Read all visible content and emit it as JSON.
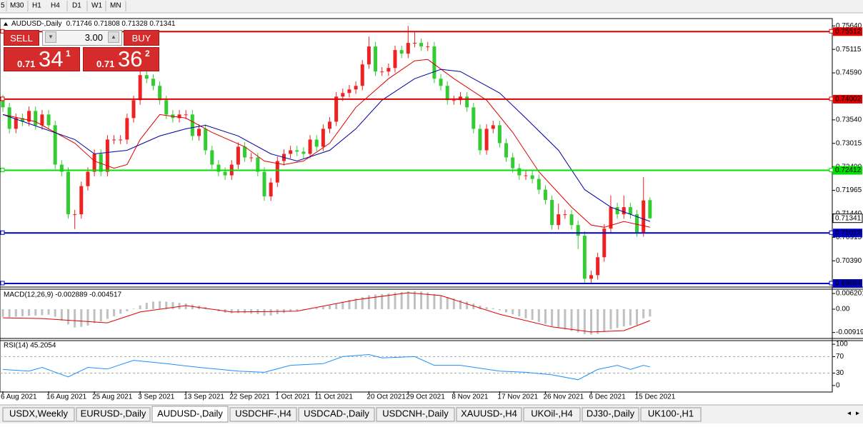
{
  "toolbar": [
    "5",
    "M30",
    "H1",
    "H4",
    "D1",
    "W1",
    "MN"
  ],
  "tabs": [
    "USDX,Weekly",
    "EURUSD-,Daily",
    "AUDUSD-,Daily",
    "USDCHF-,H4",
    "USDCAD-,Daily",
    "USDCNH-,Daily",
    "XAUUSD-,H4",
    "UKOil-,H4",
    "DJ30-,Daily",
    "UK100-,H1"
  ],
  "trade_panel": {
    "sell": "SELL",
    "buy": "BUY",
    "lots": "3.00",
    "sell_prefix": "0.71",
    "sell_big": "34",
    "sell_sup": "1",
    "buy_prefix": "0.71",
    "buy_big": "36",
    "buy_sup": "2"
  },
  "chart_data": [
    {
      "type": "candlestick",
      "title": "AUDUSD-,Daily",
      "subtitle": "0.71746 0.71808 0.71328 0.71341",
      "categories": [
        "6 Aug 2021",
        null,
        null,
        null,
        null,
        null,
        null,
        "16 Aug 2021",
        null,
        null,
        null,
        null,
        null,
        null,
        "25 Aug 2021",
        null,
        null,
        null,
        null,
        null,
        null,
        "3 Sep 2021",
        null,
        null,
        null,
        null,
        null,
        null,
        "13 Sep 2021",
        null,
        null,
        null,
        null,
        null,
        null,
        "22 Sep 2021",
        null,
        null,
        null,
        null,
        null,
        null,
        "1 Oct 2021",
        null,
        null,
        null,
        null,
        null,
        "11 Oct 2021",
        null,
        null,
        null,
        null,
        null,
        null,
        null,
        "20 Oct 2021",
        null,
        null,
        null,
        null,
        null,
        "29 Oct 2021",
        null,
        null,
        null,
        null,
        null,
        null,
        "8 Nov 2021",
        null,
        null,
        null,
        null,
        null,
        null,
        "17 Nov 2021",
        null,
        null,
        null,
        null,
        null,
        null,
        "26 Nov 2021",
        null,
        null,
        null,
        null,
        null,
        null,
        "6 Dec 2021",
        null,
        null,
        null,
        null,
        null,
        null,
        "15 Dec 2021",
        null,
        null
      ],
      "candles": [
        [
          0.74,
          0.741,
          0.7372,
          0.7382
        ],
        [
          0.7382,
          0.7392,
          0.7324,
          0.7334
        ],
        [
          0.7334,
          0.7368,
          0.7324,
          0.7358
        ],
        [
          0.7358,
          0.7368,
          0.734,
          0.735
        ],
        [
          0.735,
          0.7384,
          0.734,
          0.7374
        ],
        [
          0.7374,
          0.7384,
          0.7332,
          0.7342
        ],
        [
          0.7342,
          0.7376,
          0.7332,
          0.7366
        ],
        [
          0.7366,
          0.7376,
          0.7332,
          0.7342
        ],
        [
          0.7342,
          0.7352,
          0.7244,
          0.7254
        ],
        [
          0.7254,
          0.7264,
          0.7228,
          0.7238
        ],
        [
          0.7238,
          0.7248,
          0.7133,
          0.7143
        ],
        [
          0.7143,
          0.7153,
          0.711,
          0.7143
        ],
        [
          0.7143,
          0.7216,
          0.7133,
          0.7206
        ],
        [
          0.7206,
          0.7248,
          0.7196,
          0.7238
        ],
        [
          0.7238,
          0.7288,
          0.7228,
          0.7278
        ],
        [
          0.7278,
          0.7288,
          0.7228,
          0.7238
        ],
        [
          0.7238,
          0.732,
          0.7228,
          0.731
        ],
        [
          0.731,
          0.732,
          0.73,
          0.731
        ],
        [
          0.731,
          0.732,
          0.73,
          0.731
        ],
        [
          0.731,
          0.7368,
          0.73,
          0.7358
        ],
        [
          0.7358,
          0.7408,
          0.7348,
          0.7398
        ],
        [
          0.7398,
          0.7464,
          0.7388,
          0.7454
        ],
        [
          0.7454,
          0.7464,
          0.7436,
          0.7446
        ],
        [
          0.7446,
          0.7456,
          0.742,
          0.743
        ],
        [
          0.743,
          0.744,
          0.7388,
          0.7398
        ],
        [
          0.7398,
          0.7408,
          0.7356,
          0.7366
        ],
        [
          0.7366,
          0.7376,
          0.7348,
          0.7358
        ],
        [
          0.7358,
          0.7376,
          0.7348,
          0.7366
        ],
        [
          0.7366,
          0.7376,
          0.7356,
          0.7366
        ],
        [
          0.7366,
          0.7376,
          0.7308,
          0.7318
        ],
        [
          0.7318,
          0.7344,
          0.7308,
          0.7334
        ],
        [
          0.7334,
          0.7344,
          0.7276,
          0.7286
        ],
        [
          0.7286,
          0.7296,
          0.7244,
          0.7254
        ],
        [
          0.7254,
          0.7264,
          0.7228,
          0.7238
        ],
        [
          0.7238,
          0.7248,
          0.722,
          0.723
        ],
        [
          0.723,
          0.7264,
          0.722,
          0.7254
        ],
        [
          0.7254,
          0.7304,
          0.7244,
          0.7294
        ],
        [
          0.7294,
          0.7304,
          0.726,
          0.727
        ],
        [
          0.727,
          0.728,
          0.726,
          0.727
        ],
        [
          0.727,
          0.728,
          0.7228,
          0.7238
        ],
        [
          0.7238,
          0.7248,
          0.7173,
          0.7183
        ],
        [
          0.7183,
          0.7224,
          0.7173,
          0.7214
        ],
        [
          0.7214,
          0.7272,
          0.7204,
          0.7262
        ],
        [
          0.7262,
          0.7288,
          0.7252,
          0.7278
        ],
        [
          0.7278,
          0.7296,
          0.7268,
          0.7286
        ],
        [
          0.7286,
          0.7296,
          0.7273,
          0.7283
        ],
        [
          0.7283,
          0.7293,
          0.7268,
          0.7278
        ],
        [
          0.7278,
          0.732,
          0.7268,
          0.731
        ],
        [
          0.731,
          0.732,
          0.7284,
          0.7294
        ],
        [
          0.7294,
          0.7344,
          0.7284,
          0.7334
        ],
        [
          0.7334,
          0.736,
          0.7324,
          0.735
        ],
        [
          0.735,
          0.7416,
          0.734,
          0.7406
        ],
        [
          0.7406,
          0.7424,
          0.7396,
          0.7414
        ],
        [
          0.7414,
          0.7432,
          0.7404,
          0.7422
        ],
        [
          0.7422,
          0.744,
          0.7412,
          0.743
        ],
        [
          0.743,
          0.7488,
          0.742,
          0.7478
        ],
        [
          0.7478,
          0.754,
          0.7468,
          0.7518
        ],
        [
          0.7518,
          0.7528,
          0.7452,
          0.7462
        ],
        [
          0.7462,
          0.7472,
          0.7452,
          0.7462
        ],
        [
          0.7462,
          0.748,
          0.7452,
          0.747
        ],
        [
          0.747,
          0.752,
          0.746,
          0.751
        ],
        [
          0.751,
          0.752,
          0.7492,
          0.7502
        ],
        [
          0.7502,
          0.7564,
          0.7492,
          0.7526
        ],
        [
          0.7526,
          0.755,
          0.7516,
          0.7526
        ],
        [
          0.7526,
          0.7536,
          0.7508,
          0.7518
        ],
        [
          0.7518,
          0.7528,
          0.7508,
          0.7518
        ],
        [
          0.7518,
          0.7528,
          0.7436,
          0.7446
        ],
        [
          0.7446,
          0.7456,
          0.742,
          0.743
        ],
        [
          0.743,
          0.744,
          0.7388,
          0.7398
        ],
        [
          0.7398,
          0.7408,
          0.7388,
          0.7398
        ],
        [
          0.7398,
          0.7416,
          0.7388,
          0.7406
        ],
        [
          0.7406,
          0.7416,
          0.7372,
          0.7382
        ],
        [
          0.7382,
          0.7392,
          0.7324,
          0.7334
        ],
        [
          0.7334,
          0.7344,
          0.7276,
          0.7286
        ],
        [
          0.7286,
          0.7344,
          0.7276,
          0.7334
        ],
        [
          0.7334,
          0.7352,
          0.7324,
          0.7342
        ],
        [
          0.7342,
          0.7352,
          0.7292,
          0.7302
        ],
        [
          0.7302,
          0.7312,
          0.726,
          0.727
        ],
        [
          0.727,
          0.728,
          0.7236,
          0.7246
        ],
        [
          0.7246,
          0.7256,
          0.722,
          0.723
        ],
        [
          0.723,
          0.724,
          0.722,
          0.723
        ],
        [
          0.723,
          0.724,
          0.7212,
          0.7222
        ],
        [
          0.7222,
          0.7232,
          0.7188,
          0.7198
        ],
        [
          0.7198,
          0.7208,
          0.7165,
          0.7175
        ],
        [
          0.7175,
          0.7185,
          0.7109,
          0.7119
        ],
        [
          0.7119,
          0.7167,
          0.7109,
          0.7143
        ],
        [
          0.7143,
          0.7153,
          0.7133,
          0.7143
        ],
        [
          0.7143,
          0.7153,
          0.7109,
          0.7119
        ],
        [
          0.7119,
          0.7129,
          0.7065,
          0.7095
        ],
        [
          0.7095,
          0.7105,
          0.6988,
          0.6999
        ],
        [
          0.6999,
          0.7017,
          0.699,
          0.7007
        ],
        [
          0.7007,
          0.7057,
          0.6997,
          0.7047
        ],
        [
          0.7047,
          0.7121,
          0.7037,
          0.7111
        ],
        [
          0.7111,
          0.7185,
          0.7101,
          0.7159
        ],
        [
          0.7159,
          0.7169,
          0.7133,
          0.7143
        ],
        [
          0.7143,
          0.7185,
          0.7133,
          0.7159
        ],
        [
          0.7159,
          0.7169,
          0.7133,
          0.7143
        ],
        [
          0.7143,
          0.7153,
          0.7093,
          0.7103
        ],
        [
          0.7103,
          0.7226,
          0.7093,
          0.7174
        ],
        [
          0.71746,
          0.71808,
          0.71328,
          0.71341
        ]
      ],
      "up_color": "#ee2222",
      "down_color": "#33cc33",
      "ylim": [
        0.6982,
        0.7574
      ],
      "yticks": [
        {
          "value": 0.7564,
          "label": "0.75640"
        },
        0.75115,
        {
          "value": 0.7459,
          "label": "0.74590"
        },
        {
          "value": 0.7354,
          "label": "0.73540"
        },
        0.73015,
        {
          "value": 0.7249,
          "label": "0.72490"
        },
        0.71965,
        {
          "value": 0.7144,
          "label": "0.71440"
        },
        0.70915,
        {
          "value": 0.7039,
          "label": "0.70390"
        }
      ],
      "hlines": [
        {
          "value": 0.75512,
          "color": "#e00000"
        },
        {
          "value": 0.74002,
          "color": "#e00000"
        },
        {
          "value": 0.72412,
          "color": "#00e000"
        },
        {
          "value": 0.71012,
          "color": "#0000c0"
        },
        {
          "value": 0.69884,
          "color": "#0000c0"
        }
      ],
      "last_price": 0.71341,
      "lines": [
        {
          "color": "#e00000",
          "x": [
            0,
            5,
            11,
            14,
            17,
            19,
            21,
            24,
            28,
            32,
            37,
            40,
            43,
            46,
            50,
            54,
            59,
            63,
            65,
            69,
            74,
            78,
            82,
            87,
            90,
            92,
            95,
            99
          ],
          "values": [
            0.7366,
            0.735,
            0.7302,
            0.7262,
            0.7246,
            0.7254,
            0.731,
            0.7366,
            0.7358,
            0.7326,
            0.7294,
            0.7262,
            0.7254,
            0.7262,
            0.7302,
            0.7382,
            0.7446,
            0.7486,
            0.7489,
            0.7446,
            0.7398,
            0.7326,
            0.7238,
            0.7159,
            0.7119,
            0.7114,
            0.7127,
            0.7114
          ]
        },
        {
          "color": "#0000a0",
          "x": [
            0,
            11,
            14,
            19,
            24,
            28,
            31,
            36,
            41,
            45,
            50,
            54,
            58,
            63,
            67,
            70,
            76,
            80,
            85,
            89,
            93,
            96,
            99
          ],
          "values": [
            0.7366,
            0.731,
            0.7278,
            0.7286,
            0.7318,
            0.7334,
            0.7342,
            0.7318,
            0.7278,
            0.7262,
            0.7286,
            0.7334,
            0.7398,
            0.7446,
            0.7467,
            0.7462,
            0.7414,
            0.7358,
            0.7286,
            0.7198,
            0.7159,
            0.7143,
            0.7127
          ]
        }
      ]
    },
    {
      "type": "macd",
      "title": "MACD(12,26,9) -0.002889 -0.004517",
      "values": [
        -0.003,
        -0.0032,
        -0.003,
        -0.0028,
        -0.0026,
        -0.0025,
        -0.0024,
        -0.0022,
        -0.003,
        -0.0045,
        -0.006,
        -0.0072,
        -0.007,
        -0.0065,
        -0.0055,
        -0.0048,
        -0.0038,
        -0.0028,
        -0.0018,
        -0.0008,
        0.0002,
        0.0015,
        0.0025,
        0.003,
        0.0032,
        0.003,
        0.0028,
        0.0025,
        0.0022,
        0.0018,
        0.0014,
        0.0008,
        0.0,
        -0.0008,
        -0.0014,
        -0.0016,
        -0.0015,
        -0.0016,
        -0.0018,
        -0.002,
        -0.0026,
        -0.0025,
        -0.002,
        -0.0015,
        -0.001,
        -0.0006,
        -0.0003,
        0.0002,
        0.0005,
        0.001,
        0.0015,
        0.0022,
        0.003,
        0.0036,
        0.0042,
        0.0048,
        0.0055,
        0.0058,
        0.006,
        0.0062,
        0.0066,
        0.0068,
        0.007,
        0.0071,
        0.007,
        0.0066,
        0.006,
        0.0054,
        0.0048,
        0.0042,
        0.0036,
        0.003,
        0.0022,
        0.0014,
        0.0008,
        0.0004,
        -0.0004,
        -0.0012,
        -0.002,
        -0.0028,
        -0.0036,
        -0.0042,
        -0.005,
        -0.0058,
        -0.0068,
        -0.0074,
        -0.008,
        -0.0086,
        -0.0092,
        -0.0098,
        -0.01,
        -0.0098,
        -0.009,
        -0.008,
        -0.0074,
        -0.0068,
        -0.0064,
        -0.0062,
        -0.0036,
        -0.002889
      ],
      "color": "#c0c0c0",
      "signal": {
        "color": "#e00000",
        "x": [
          0,
          6,
          16,
          21,
          28,
          35,
          45,
          54,
          62,
          67,
          76,
          84,
          90,
          95,
          99
        ],
        "values": [
          -0.0034,
          -0.0037,
          -0.0054,
          -0.0011,
          0.0014,
          -0.0011,
          -0.0008,
          0.0037,
          0.0065,
          0.0054,
          -0.002,
          -0.007,
          -0.009,
          -0.0085,
          -0.004517
        ]
      },
      "ylim": [
        -0.011,
        0.0079
      ],
      "yticks": [
        0.006201,
        {
          "value": 0,
          "label": "0.00"
        },
        -0.009197
      ]
    },
    {
      "type": "line",
      "title": "RSI(14) 45.2054",
      "x": [
        0,
        4,
        6,
        10,
        13,
        16,
        20,
        25,
        30,
        36,
        40,
        44,
        49,
        52,
        56,
        58,
        63,
        66,
        70,
        76,
        80,
        84,
        88,
        91,
        94,
        96,
        98,
        99
      ],
      "values": [
        39,
        35,
        44,
        21,
        44,
        40,
        61,
        53,
        44,
        35,
        32,
        49,
        53,
        70,
        75,
        67,
        70,
        49,
        49,
        35,
        32,
        26,
        14,
        39,
        49,
        39,
        49,
        45.2054
      ],
      "color": "#1e90ff",
      "ylim": [
        -14,
        108.8
      ],
      "yticks": [
        100,
        70,
        30,
        0
      ],
      "level_lines": true
    }
  ]
}
